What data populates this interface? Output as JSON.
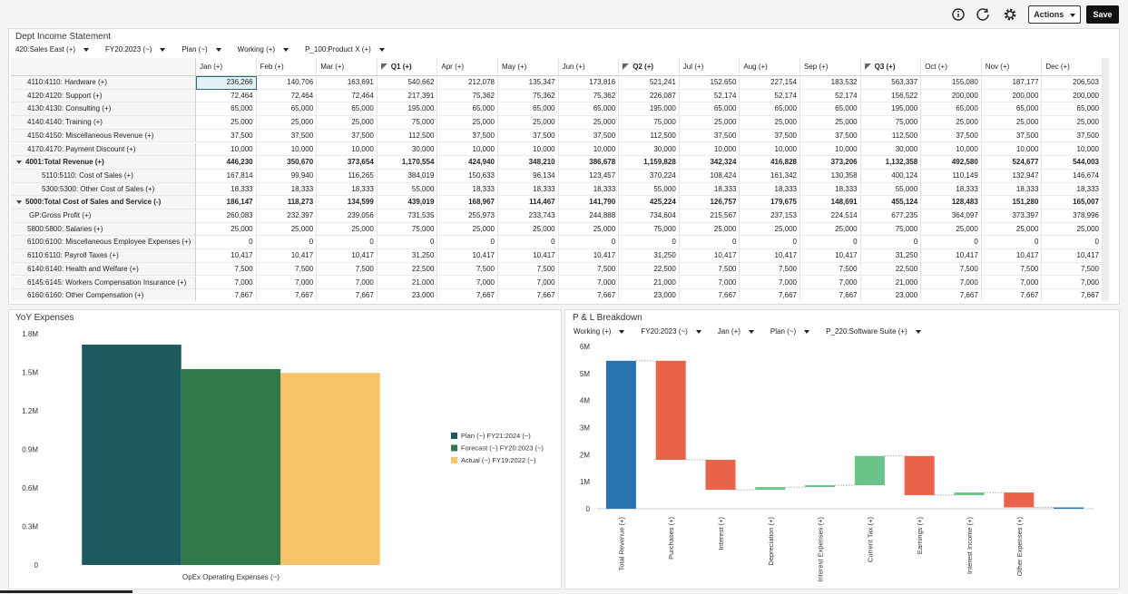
{
  "toolbar": {
    "actions": "Actions",
    "save": "Save"
  },
  "income_statement": {
    "title": "Dept Income Statement",
    "pov": [
      "420:Sales East (+)",
      "FY20:2023 (~)",
      "Plan (~)",
      "Working (+)",
      "P_100:Product X (+)"
    ],
    "columns": [
      {
        "label": "Jan (+)"
      },
      {
        "label": "Feb (+)"
      },
      {
        "label": "Mar (+)"
      },
      {
        "label": "Q1 (+)",
        "summary": true
      },
      {
        "label": "Apr (+)"
      },
      {
        "label": "May (+)"
      },
      {
        "label": "Jun (+)"
      },
      {
        "label": "Q2 (+)",
        "summary": true
      },
      {
        "label": "Jul (+)"
      },
      {
        "label": "Aug (+)"
      },
      {
        "label": "Sep (+)"
      },
      {
        "label": "Q3 (+)",
        "summary": true
      },
      {
        "label": "Oct (+)"
      },
      {
        "label": "Nov (+)"
      },
      {
        "label": "Dec (+)"
      }
    ],
    "rows": [
      {
        "label": "4110:4110: Hardware (+)",
        "cells": [
          "236,266",
          "140,706",
          "163,691",
          "540,662",
          "212,078",
          "135,347",
          "173,816",
          "521,241",
          "152,650",
          "227,154",
          "183,532",
          "563,337",
          "155,080",
          "187,177",
          "206,503"
        ]
      },
      {
        "label": "4120:4120: Support (+)",
        "cells": [
          "72,464",
          "72,464",
          "72,464",
          "217,391",
          "75,362",
          "75,362",
          "75,362",
          "226,087",
          "52,174",
          "52,174",
          "52,174",
          "156,522",
          "200,000",
          "200,000",
          "200,000"
        ]
      },
      {
        "label": "4130:4130: Consulting (+)",
        "cells": [
          "65,000",
          "65,000",
          "65,000",
          "195,000",
          "65,000",
          "65,000",
          "65,000",
          "195,000",
          "65,000",
          "65,000",
          "65,000",
          "195,000",
          "65,000",
          "65,000",
          "65,000"
        ]
      },
      {
        "label": "4140:4140: Training (+)",
        "cells": [
          "25,000",
          "25,000",
          "25,000",
          "75,000",
          "25,000",
          "25,000",
          "25,000",
          "75,000",
          "25,000",
          "25,000",
          "25,000",
          "75,000",
          "25,000",
          "25,000",
          "25,000"
        ]
      },
      {
        "label": "4150:4150: Miscellaneous Revenue (+)",
        "cells": [
          "37,500",
          "37,500",
          "37,500",
          "112,500",
          "37,500",
          "37,500",
          "37,500",
          "112,500",
          "37,500",
          "37,500",
          "37,500",
          "112,500",
          "37,500",
          "37,500",
          "37,500"
        ]
      },
      {
        "label": "4170:4170: Payment Discount (+)",
        "cells": [
          "10,000",
          "10,000",
          "10,000",
          "30,000",
          "10,000",
          "10,000",
          "10,000",
          "30,000",
          "10,000",
          "10,000",
          "10,000",
          "30,000",
          "10,000",
          "10,000",
          "10,000"
        ]
      },
      {
        "label": "4001:Total Revenue (+)",
        "total": true,
        "cells": [
          "446,230",
          "350,670",
          "373,654",
          "1,170,554",
          "424,940",
          "348,210",
          "386,678",
          "1,159,828",
          "342,324",
          "416,828",
          "373,206",
          "1,132,358",
          "492,580",
          "524,677",
          "544,003"
        ]
      },
      {
        "label": "5110:5110: Cost of Sales (+)",
        "cells": [
          "167,814",
          "99,940",
          "116,265",
          "384,019",
          "150,633",
          "96,134",
          "123,457",
          "370,224",
          "108,424",
          "161,342",
          "130,358",
          "400,124",
          "110,149",
          "132,947",
          "146,674"
        ]
      },
      {
        "label": "5300:5300: Other Cost of Sales (+)",
        "cells": [
          "18,333",
          "18,333",
          "18,333",
          "55,000",
          "18,333",
          "18,333",
          "18,333",
          "55,000",
          "18,333",
          "18,333",
          "18,333",
          "55,000",
          "18,333",
          "18,333",
          "18,333"
        ]
      },
      {
        "label": "5000:Total Cost of Sales and Service (-)",
        "total": true,
        "cells": [
          "186,147",
          "118,273",
          "134,599",
          "439,019",
          "168,967",
          "114,467",
          "141,790",
          "425,224",
          "126,757",
          "179,675",
          "148,691",
          "455,124",
          "128,483",
          "151,280",
          "165,007"
        ]
      },
      {
        "label": "GP:Gross Profit (+)",
        "cells": [
          "260,083",
          "232,397",
          "239,056",
          "731,535",
          "255,973",
          "233,743",
          "244,888",
          "734,604",
          "215,567",
          "237,153",
          "224,514",
          "677,235",
          "364,097",
          "373,397",
          "378,996"
        ]
      },
      {
        "label": "5800:5800: Salaries (+)",
        "cells": [
          "25,000",
          "25,000",
          "25,000",
          "75,000",
          "25,000",
          "25,000",
          "25,000",
          "75,000",
          "25,000",
          "25,000",
          "25,000",
          "75,000",
          "25,000",
          "25,000",
          "25,000"
        ]
      },
      {
        "label": "6100:6100: Miscellaneous Employee Expenses (+)",
        "cells": [
          "0",
          "0",
          "0",
          "0",
          "0",
          "0",
          "0",
          "0",
          "0",
          "0",
          "0",
          "0",
          "0",
          "0",
          "0"
        ]
      },
      {
        "label": "6110:6110: Payroll Taxes (+)",
        "cells": [
          "10,417",
          "10,417",
          "10,417",
          "31,250",
          "10,417",
          "10,417",
          "10,417",
          "31,250",
          "10,417",
          "10,417",
          "10,417",
          "31,250",
          "10,417",
          "10,417",
          "10,417"
        ]
      },
      {
        "label": "6140:6140: Health and Welfare (+)",
        "cells": [
          "7,500",
          "7,500",
          "7,500",
          "22,500",
          "7,500",
          "7,500",
          "7,500",
          "22,500",
          "7,500",
          "7,500",
          "7,500",
          "22,500",
          "7,500",
          "7,500",
          "7,500"
        ]
      },
      {
        "label": "6145:6145: Workers Compensation Insurance (+)",
        "cells": [
          "7,000",
          "7,000",
          "7,000",
          "21,000",
          "7,000",
          "7,000",
          "7,000",
          "21,000",
          "7,000",
          "7,000",
          "7,000",
          "21,000",
          "7,000",
          "7,000",
          "7,000"
        ]
      },
      {
        "label": "6160:6160: Other Compensation (+)",
        "cells": [
          "7,667",
          "7,667",
          "7,667",
          "23,000",
          "7,667",
          "7,667",
          "7,667",
          "23,000",
          "7,667",
          "7,667",
          "7,667",
          "23,000",
          "7,667",
          "7,667",
          "7,667"
        ]
      }
    ]
  },
  "yoy_expenses": {
    "type": "bar",
    "title": "YoY Expenses",
    "categories": [
      "OpEx Operating Expenses (~)"
    ],
    "series": [
      {
        "name": "Plan (~) FY21:2024 (~)",
        "color": "#1e5a5d",
        "values": [
          1715000
        ]
      },
      {
        "name": "Forecast (~) FY20:2023 (~)",
        "color": "#2f7a48",
        "values": [
          1525000
        ]
      },
      {
        "name": "Actual (~) FY19:2022 (~)",
        "color": "#f8c46a",
        "values": [
          1495000
        ]
      }
    ],
    "ylim": [
      0,
      1800000
    ],
    "yticks": [
      0,
      {
        "value": 300000,
        "label": "0.3M"
      },
      {
        "value": 600000,
        "label": "0.6M"
      },
      {
        "value": 900000,
        "label": "0.9M"
      },
      {
        "value": 1200000,
        "label": "1.2M"
      },
      {
        "value": 1500000,
        "label": "1.5M"
      },
      {
        "value": 1800000,
        "label": "1.8M"
      }
    ],
    "legend": "right"
  },
  "pl_breakdown": {
    "type": "waterfall",
    "title": "P & L Breakdown",
    "pov": [
      "Working (+)",
      "FY20:2023 (~)",
      "Jan (+)",
      "Plan (~)",
      "P_220:Software Suite (+)"
    ],
    "categories": [
      "Total Revenue (+)",
      "Purchases (+)",
      "Interest (+)",
      "Depreciation (+)",
      "Interest Expenses (+)",
      "Current Tax (+)",
      "Earnings (+)",
      "Interest Income (+)",
      "Other Expenses (+)",
      null
    ],
    "values": [
      5470000,
      -3660000,
      -1110000,
      100000,
      70000,
      1080000,
      -1450000,
      100000,
      -550000,
      50000
    ],
    "measures": [
      "total",
      "relative",
      "relative",
      "relative",
      "relative",
      "relative",
      "relative",
      "relative",
      "relative",
      "total"
    ],
    "colors": {
      "total": "#2673b0",
      "increase": "#6cc38a",
      "decrease": "#e8634a"
    },
    "ylim": [
      0,
      6000000
    ],
    "yticks": [
      0,
      {
        "value": 1000000,
        "label": "1M"
      },
      {
        "value": 2000000,
        "label": "2M"
      },
      {
        "value": 3000000,
        "label": "3M"
      },
      {
        "value": 4000000,
        "label": "4M"
      },
      {
        "value": 5000000,
        "label": "5M"
      },
      {
        "value": 6000000,
        "label": "6M"
      }
    ]
  }
}
